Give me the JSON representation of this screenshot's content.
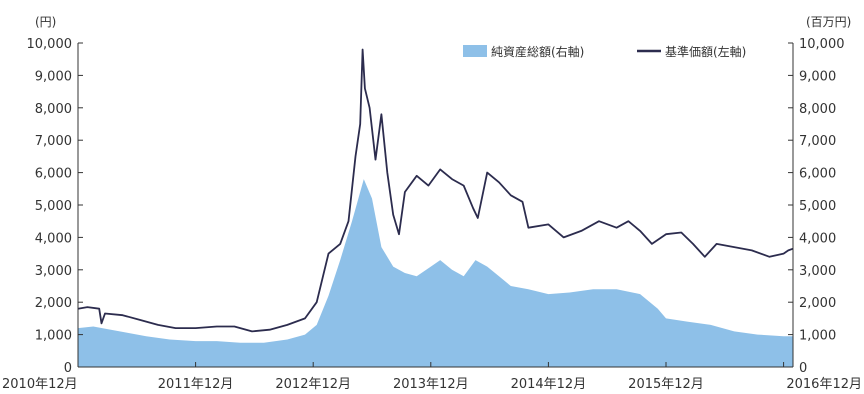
{
  "chart_data": {
    "type": "area",
    "title": "",
    "left_axis": {
      "unit": "(円)",
      "ylim": [
        0,
        10000
      ],
      "ticks": [
        "0",
        "1,000",
        "2,000",
        "3,000",
        "4,000",
        "5,000",
        "6,000",
        "7,000",
        "8,000",
        "9,000",
        "10,000"
      ]
    },
    "right_axis": {
      "unit": "(百万円)",
      "ylim": [
        0,
        10000
      ],
      "ticks": [
        "0",
        "1,000",
        "2,000",
        "3,000",
        "4,000",
        "5,000",
        "6,000",
        "7,000",
        "8,000",
        "9,000",
        "10,000"
      ]
    },
    "x_axis": {
      "xlim": [
        2010.92,
        2017.0
      ],
      "ticks": [
        {
          "x": 2010.92,
          "label": "2010年12月"
        },
        {
          "x": 2011.92,
          "label": "2011年12月"
        },
        {
          "x": 2012.92,
          "label": "2012年12月"
        },
        {
          "x": 2013.92,
          "label": "2013年12月"
        },
        {
          "x": 2014.92,
          "label": "2014年12月"
        },
        {
          "x": 2015.92,
          "label": "2015年12月"
        },
        {
          "x": 2016.92,
          "label": "2016年12月"
        }
      ]
    },
    "legend": {
      "position": "top-right"
    },
    "colors": {
      "net_assets": "#8ec0e8",
      "nav": "#2c2c4e"
    },
    "series": [
      {
        "name": "純資産総額(右軸)",
        "kind": "area",
        "axis": "right",
        "points": [
          [
            2010.92,
            1200
          ],
          [
            2011.05,
            1250
          ],
          [
            2011.2,
            1150
          ],
          [
            2011.35,
            1050
          ],
          [
            2011.5,
            950
          ],
          [
            2011.7,
            850
          ],
          [
            2011.92,
            800
          ],
          [
            2012.1,
            800
          ],
          [
            2012.3,
            750
          ],
          [
            2012.5,
            750
          ],
          [
            2012.7,
            850
          ],
          [
            2012.85,
            1000
          ],
          [
            2012.95,
            1300
          ],
          [
            2013.05,
            2200
          ],
          [
            2013.15,
            3300
          ],
          [
            2013.25,
            4500
          ],
          [
            2013.35,
            5800
          ],
          [
            2013.42,
            5200
          ],
          [
            2013.5,
            3700
          ],
          [
            2013.6,
            3100
          ],
          [
            2013.7,
            2900
          ],
          [
            2013.8,
            2800
          ],
          [
            2013.92,
            3100
          ],
          [
            2014.0,
            3300
          ],
          [
            2014.1,
            3000
          ],
          [
            2014.2,
            2800
          ],
          [
            2014.3,
            3300
          ],
          [
            2014.4,
            3100
          ],
          [
            2014.5,
            2800
          ],
          [
            2014.6,
            2500
          ],
          [
            2014.75,
            2400
          ],
          [
            2014.92,
            2250
          ],
          [
            2015.1,
            2300
          ],
          [
            2015.3,
            2400
          ],
          [
            2015.5,
            2400
          ],
          [
            2015.7,
            2250
          ],
          [
            2015.85,
            1800
          ],
          [
            2015.92,
            1500
          ],
          [
            2016.1,
            1400
          ],
          [
            2016.3,
            1300
          ],
          [
            2016.5,
            1100
          ],
          [
            2016.7,
            1000
          ],
          [
            2016.92,
            950
          ],
          [
            2017.0,
            950
          ]
        ]
      },
      {
        "name": "基準価額(左軸)",
        "kind": "line",
        "axis": "left",
        "points": [
          [
            2010.92,
            1800
          ],
          [
            2011.0,
            1850
          ],
          [
            2011.1,
            1800
          ],
          [
            2011.12,
            1350
          ],
          [
            2011.15,
            1650
          ],
          [
            2011.3,
            1600
          ],
          [
            2011.45,
            1450
          ],
          [
            2011.6,
            1300
          ],
          [
            2011.75,
            1200
          ],
          [
            2011.92,
            1200
          ],
          [
            2012.1,
            1250
          ],
          [
            2012.25,
            1250
          ],
          [
            2012.4,
            1100
          ],
          [
            2012.55,
            1150
          ],
          [
            2012.7,
            1300
          ],
          [
            2012.85,
            1500
          ],
          [
            2012.95,
            2000
          ],
          [
            2013.05,
            3500
          ],
          [
            2013.15,
            3800
          ],
          [
            2013.22,
            4500
          ],
          [
            2013.28,
            6500
          ],
          [
            2013.32,
            7500
          ],
          [
            2013.34,
            9800
          ],
          [
            2013.36,
            8600
          ],
          [
            2013.4,
            8000
          ],
          [
            2013.45,
            6400
          ],
          [
            2013.5,
            7800
          ],
          [
            2013.55,
            6000
          ],
          [
            2013.6,
            4700
          ],
          [
            2013.65,
            4100
          ],
          [
            2013.7,
            5400
          ],
          [
            2013.8,
            5900
          ],
          [
            2013.9,
            5600
          ],
          [
            2014.0,
            6100
          ],
          [
            2014.1,
            5800
          ],
          [
            2014.2,
            5600
          ],
          [
            2014.28,
            4900
          ],
          [
            2014.32,
            4600
          ],
          [
            2014.4,
            6000
          ],
          [
            2014.5,
            5700
          ],
          [
            2014.6,
            5300
          ],
          [
            2014.7,
            5100
          ],
          [
            2014.75,
            4300
          ],
          [
            2014.92,
            4400
          ],
          [
            2015.05,
            4000
          ],
          [
            2015.2,
            4200
          ],
          [
            2015.35,
            4500
          ],
          [
            2015.5,
            4300
          ],
          [
            2015.6,
            4500
          ],
          [
            2015.7,
            4200
          ],
          [
            2015.8,
            3800
          ],
          [
            2015.92,
            4100
          ],
          [
            2016.05,
            4150
          ],
          [
            2016.15,
            3800
          ],
          [
            2016.25,
            3400
          ],
          [
            2016.35,
            3800
          ],
          [
            2016.5,
            3700
          ],
          [
            2016.65,
            3600
          ],
          [
            2016.8,
            3400
          ],
          [
            2016.92,
            3500
          ],
          [
            2016.96,
            3600
          ],
          [
            2017.0,
            3650
          ]
        ]
      }
    ]
  }
}
